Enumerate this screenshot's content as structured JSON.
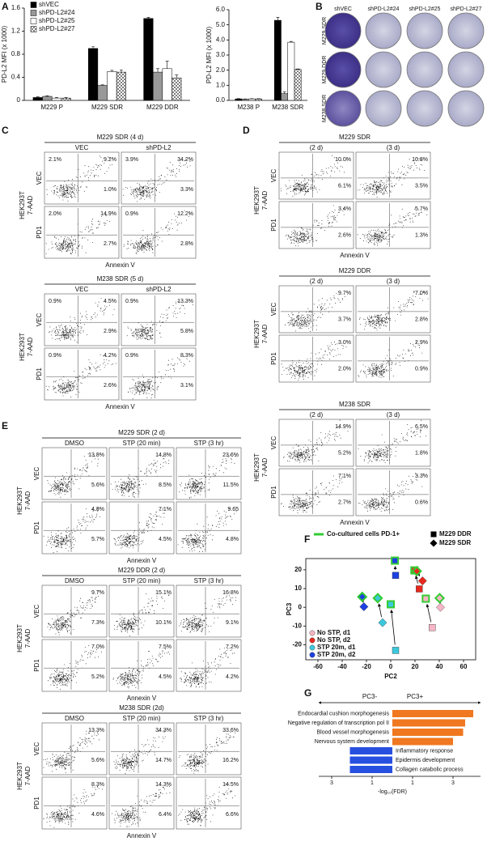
{
  "panel_labels": [
    "A",
    "B",
    "C",
    "D",
    "E",
    "F",
    "G"
  ],
  "chart_data": [
    {
      "type": "bar",
      "ylabel": "PD-L2 MFI (x 1000)",
      "categories": [
        "M229 P",
        "M229 SDR",
        "M229 DDR"
      ],
      "series": [
        {
          "name": "shVEC",
          "color": "#000000",
          "values": [
            0.05,
            0.9,
            1.42
          ],
          "errors": [
            0.01,
            0.03,
            0.02
          ]
        },
        {
          "name": "shPD-L2#24",
          "color": "#999999",
          "values": [
            0.07,
            0.26,
            0.49
          ],
          "errors": [
            0.01,
            0.01,
            0.06
          ]
        },
        {
          "name": "shPD-L2#25",
          "color": "#ffffff",
          "values": [
            0.04,
            0.5,
            0.55
          ],
          "errors": [
            0.01,
            0.02,
            0.13
          ]
        },
        {
          "name": "shPD-L2#27",
          "color": "#ffffff",
          "pattern": "crosshatch",
          "values": [
            0.04,
            0.49,
            0.39
          ],
          "errors": [
            0.01,
            0.04,
            0.05
          ]
        }
      ],
      "ylim": [
        0,
        1.6
      ],
      "yticks": [
        0,
        0.4,
        0.8,
        1.2,
        1.6
      ]
    },
    {
      "type": "bar",
      "ylabel": "PD-L2 MFI (x 1000)",
      "categories": [
        "M238 P",
        "M238 SDR"
      ],
      "series": [
        {
          "color": "#000000",
          "values": [
            0.1,
            5.3
          ],
          "errors": [
            0.02,
            0.2
          ]
        },
        {
          "color": "#999999",
          "values": [
            0.08,
            0.45
          ],
          "errors": [
            0.02,
            0.1
          ]
        },
        {
          "color": "#ffffff",
          "values": [
            0.1,
            3.85
          ],
          "errors": [
            0.02,
            0.05
          ]
        },
        {
          "color": "#ffffff",
          "pattern": "crosshatch",
          "values": [
            0.1,
            2.05
          ],
          "errors": [
            0.02,
            0.03
          ]
        }
      ],
      "ylim": [
        0,
        6
      ],
      "yticks": [
        {
          "value": 0,
          "label": "0.0"
        },
        {
          "value": 1,
          "label": "1.0"
        },
        {
          "value": 2,
          "label": "2.0"
        },
        {
          "value": 3,
          "label": "3.0"
        },
        {
          "value": 4,
          "label": "4.0"
        },
        {
          "value": 5,
          "label": "5.0"
        },
        {
          "value": 6,
          "label": "6.0"
        }
      ]
    },
    {
      "type": "scatter",
      "xlabel": "PC2",
      "ylabel": "PC3",
      "xlim": [
        -70,
        70
      ],
      "ylim": [
        -28,
        26
      ],
      "xticks": [
        -60,
        -40,
        -20,
        0,
        20,
        40,
        60
      ],
      "yticks": [
        -20,
        -10,
        0,
        10,
        20
      ],
      "co_cultured_marker": {
        "label": "Co-cultured cells PD-1+",
        "color": "#33cc33"
      },
      "color_groups": [
        {
          "name": "No STP, d1",
          "color": "#f7b6c6"
        },
        {
          "name": "No STP, d2",
          "color": "#e8281e"
        },
        {
          "name": "STP 20m, d1",
          "color": "#3cc8dc"
        },
        {
          "name": "STP 20m, d2",
          "color": "#1e40e0"
        }
      ],
      "series": [
        {
          "name": "M229 DDR",
          "marker": "square",
          "x": [
            3.4,
            4.0,
            19.5,
            23.5,
            0,
            4.0,
            28.9,
            34.2
          ],
          "y": [
            24.9,
            17.0,
            19.7,
            9.8,
            1.6,
            -23.0,
            4.6,
            -10.8
          ],
          "point_colors": [
            "#1e40e0",
            "#1e40e0",
            "#e8281e",
            "#e8281e",
            "#3cc8dc",
            "#3cc8dc",
            "#f7b6c6",
            "#f7b6c6"
          ],
          "co_cultured": [
            true,
            false,
            true,
            false,
            true,
            false,
            true,
            false
          ]
        },
        {
          "name": "M229 SDR",
          "marker": "diamond",
          "x": [
            21.5,
            26.2,
            -23.5,
            -22.1,
            -10.7,
            -6.7,
            40.3,
            41.0
          ],
          "y": [
            19.3,
            14.1,
            5.6,
            0.3,
            4.9,
            -8.2,
            4.9,
            0
          ],
          "point_colors": [
            "#e8281e",
            "#e8281e",
            "#1e40e0",
            "#1e40e0",
            "#3cc8dc",
            "#3cc8dc",
            "#f7b6c6",
            "#f7b6c6"
          ],
          "co_cultured": [
            true,
            false,
            true,
            false,
            true,
            false,
            true,
            false
          ]
        }
      ]
    },
    {
      "type": "hbar",
      "direction_labels": [
        "PC3-",
        "PC3+"
      ],
      "xlabel": "-log₁₀(FDR)",
      "categories": [
        "Endocardial cushion morphogenesis",
        "Negative regulation of transcription pol II",
        "Blood vessel morphogenesis",
        "Nervous system development",
        "Inflammatory response",
        "Epidermis development",
        "Collagen catabolic process"
      ],
      "values": [
        4.0,
        3.6,
        3.5,
        3.0,
        -2.1,
        -2.1,
        -2.1
      ],
      "positive_color": "#f07820",
      "negative_color": "#2850e0",
      "xlim": [
        -4.2,
        4.6
      ],
      "xticks": [
        {
          "value": -3,
          "label": "3"
        },
        {
          "value": -1,
          "label": "1"
        },
        1,
        3
      ]
    }
  ],
  "colony_assay": {
    "columns": [
      "shVEC",
      "shPD-L2#24",
      "shPD-L2#25",
      "shPD-L2#27"
    ],
    "rows": [
      "M229 SDR",
      "M229 DDR",
      "M238 SDR"
    ]
  },
  "flow_panels": [
    {
      "title": "M229 SDR (4 d)",
      "columns": [
        "VEC",
        "shPD-L2"
      ],
      "cell_line": "HEK293T",
      "y_label": "7-AAD",
      "x_label": "Annexin V",
      "rows": [
        {
          "label": "VEC",
          "cells": [
            [
              "2.1%",
              "9.2%",
              "1.0%"
            ],
            [
              "3.9%",
              "34.2%",
              "3.3%"
            ]
          ]
        },
        {
          "label": "PD1",
          "cells": [
            [
              "2.0%",
              "14.9%",
              "2.7%"
            ],
            [
              "0.9%",
              "12.2%",
              "2.8%"
            ]
          ]
        }
      ]
    },
    {
      "title": "M238 SDR (5 d)",
      "columns": [
        "VEC",
        "shPD-L2"
      ],
      "cell_line": "HEK293T",
      "y_label": "7-AAD",
      "x_label": "Annexin V",
      "rows": [
        {
          "label": "VEC",
          "cells": [
            [
              "0.9%",
              "4.5%",
              "2.9%"
            ],
            [
              "0.9%",
              "13.3%",
              "5.8%"
            ]
          ]
        },
        {
          "label": "PD1",
          "cells": [
            [
              "0.9%",
              "4.2%",
              "2.6%"
            ],
            [
              "0.9%",
              "8.3%",
              "3.1%"
            ]
          ]
        }
      ]
    },
    {
      "title": "M229 SDR",
      "columns": [
        "(2 d)",
        "(3 d)"
      ],
      "cell_line": "HEK293T",
      "y_label": "7-AAD",
      "x_label": "Annexin V",
      "rows": [
        {
          "label": "VEC",
          "cells": [
            [
              "10.0%",
              "6.1%"
            ],
            [
              "10.8%",
              "3.5%"
            ]
          ]
        },
        {
          "label": "PD1",
          "cells": [
            [
              "3.4%",
              "2.6%"
            ],
            [
              "5.7%",
              "1.3%"
            ]
          ]
        }
      ]
    },
    {
      "title": "M229 DDR",
      "columns": [
        "(2 d)",
        "(3 d)"
      ],
      "cell_line": "HEK293T",
      "y_label": "7-AAD",
      "rows": [
        {
          "label": "VEC",
          "cells": [
            [
              "9.7%",
              "3.7%"
            ],
            [
              "7.0%",
              "2.8%"
            ]
          ]
        },
        {
          "label": "PD1",
          "cells": [
            [
              "3.0%",
              "2.0%"
            ],
            [
              "2.9%",
              "0.9%"
            ]
          ]
        }
      ]
    },
    {
      "title": "M238 SDR",
      "columns": [
        "(2 d)",
        "(3 d)"
      ],
      "cell_line": "HEK293T",
      "y_label": "7-AAD",
      "x_label": "Annexin V",
      "rows": [
        {
          "label": "VEC",
          "cells": [
            [
              "14.9%",
              "5.2%"
            ],
            [
              "6.5%",
              "1.8%"
            ]
          ]
        },
        {
          "label": "PD1",
          "cells": [
            [
              "7.1%",
              "2.7%"
            ],
            [
              "3.3%",
              "0.6%"
            ]
          ]
        }
      ]
    },
    {
      "title": "M229 SDR (2 d)",
      "columns": [
        "DMSO",
        "STP (20 min)",
        "STP (3 hr)"
      ],
      "cell_line": "HEK293T",
      "y_label": "7-AAD",
      "x_label": "Annexin V",
      "rows": [
        {
          "label": "VEC",
          "cells": [
            [
              "13.8%",
              "5.6%"
            ],
            [
              "14.8%",
              "8.5%"
            ],
            [
              "23.6%",
              "11.5%"
            ]
          ]
        },
        {
          "label": "PD1",
          "cells": [
            [
              "4.8%",
              "5.7%"
            ],
            [
              "7.1%",
              "4.5%"
            ],
            [
              "9.65",
              "4.8%"
            ]
          ]
        }
      ]
    },
    {
      "title": "M229 DDR (2 d)",
      "columns": [
        "DMSO",
        "STP (20 min)",
        "STP (3 hr)"
      ],
      "cell_line": "HEK293T",
      "y_label": "7-AAD",
      "x_label": "Annexin V",
      "rows": [
        {
          "label": "VEC",
          "cells": [
            [
              "9.7%",
              "7.3%"
            ],
            [
              "15.1%",
              "10.1%"
            ],
            [
              "16.8%",
              "9.1%"
            ]
          ]
        },
        {
          "label": "PD1",
          "cells": [
            [
              "7.0%",
              "5.2%"
            ],
            [
              "7.5%",
              "4.5%"
            ],
            [
              "7.2%",
              "4.2%"
            ]
          ]
        }
      ]
    },
    {
      "title": "M238 SDR (2d)",
      "columns": [
        "DMSO",
        "STP (20 min)",
        "STP (3 hr)"
      ],
      "cell_line": "HEK293T",
      "y_label": "7-AAD",
      "x_label": "Annexin V",
      "rows": [
        {
          "label": "VEC",
          "cells": [
            [
              "13.3%",
              "5.6%"
            ],
            [
              "34.3%",
              "14.7%"
            ],
            [
              "33.6%",
              "16.2%"
            ]
          ]
        },
        {
          "label": "PD1",
          "cells": [
            [
              "8.3%",
              "4.6%"
            ],
            [
              "14.3%",
              "6.4%"
            ],
            [
              "14.5%",
              "6.6%"
            ]
          ]
        }
      ]
    }
  ]
}
